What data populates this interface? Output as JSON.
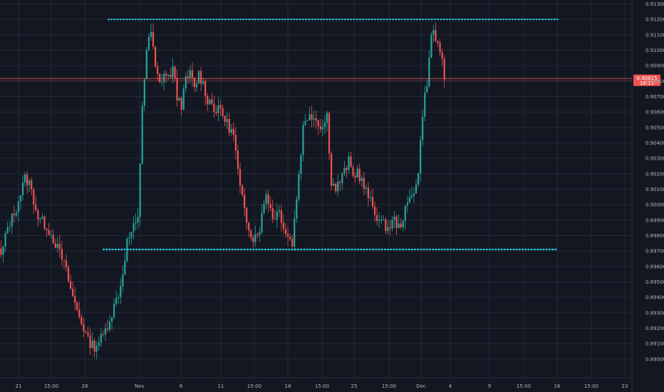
{
  "chart_data": {
    "type": "candlestick",
    "colors": {
      "background": "#131722",
      "up": "#26a69a",
      "down": "#ef5350",
      "grid": "#242936",
      "text": "#b2b5be",
      "level": "#26c6da",
      "price_line": "#ef5350"
    },
    "yaxis": {
      "range": [
        0.8896,
        0.913
      ],
      "ticks": [
        "0.91300",
        "0.91200",
        "0.91100",
        "0.91000",
        "0.90900",
        "0.90800",
        "0.90700",
        "0.90600",
        "0.90500",
        "0.90400",
        "0.90300",
        "0.90200",
        "0.90100",
        "0.90000",
        "0.89900",
        "0.89800",
        "0.89700",
        "0.89600",
        "0.89500",
        "0.89400",
        "0.89300",
        "0.89200",
        "0.89100",
        "0.89000"
      ]
    },
    "xaxis": {
      "ticks": [
        "21",
        "15:00",
        "28",
        "Nov",
        "6",
        "11",
        "15:00",
        "18",
        "15:00",
        "25",
        "15:00",
        "Dec",
        "4",
        "9",
        "15:00",
        "16",
        "15:00",
        "23"
      ]
    },
    "levels": [
      0.912,
      0.8971
    ],
    "current_price": {
      "value": 0.9081,
      "label": "0.90815",
      "sublabel": "16:11"
    },
    "ohlc": []
  }
}
